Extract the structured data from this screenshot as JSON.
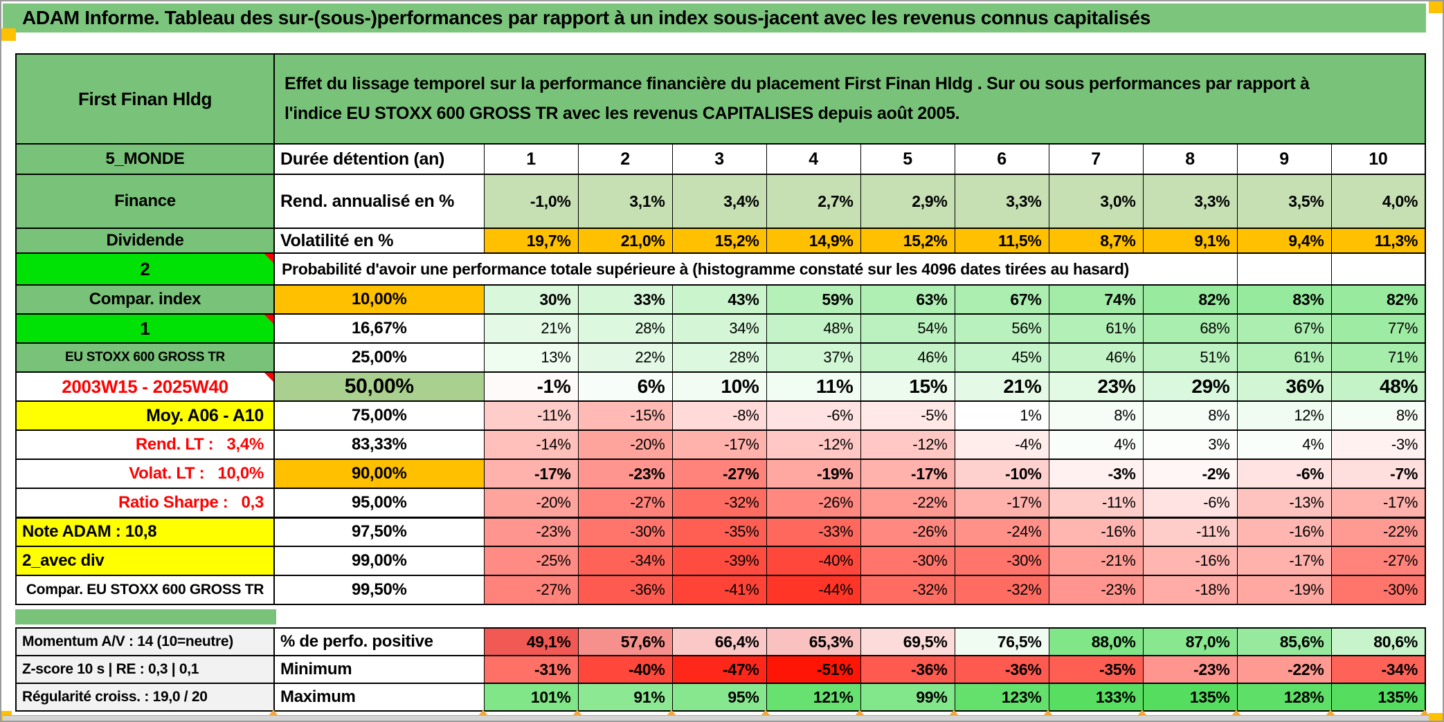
{
  "banner": {
    "title": "ADAM Informe. Tableau des sur-(sous-)performances par rapport à un index sous-jacent avec les revenus connus capitalisés"
  },
  "header": {
    "asset": "First Finan Hldg",
    "description": "Effet du lissage temporel sur la performance financière du placement First Finan Hldg . Sur ou sous performances par rapport à\nl'indice EU STOXX 600 GROSS TR avec les revenus CAPITALISES depuis août 2005."
  },
  "grid": {
    "rows": [
      {
        "kind": "duration",
        "left": "5_MONDE",
        "lv": "green",
        "mid": "Durée détention (an)",
        "mv": "label",
        "cv": "dur",
        "scale": "none",
        "cells": [
          "1",
          "2",
          "3",
          "4",
          "5",
          "6",
          "7",
          "8",
          "9",
          "10"
        ]
      },
      {
        "kind": "returns",
        "left": "Finance",
        "lv": "green",
        "mid": "Rend. annualisé en %",
        "mv": "label",
        "cv": "bold",
        "scale": "lightgreen",
        "cells": [
          "-1,0%",
          "3,1%",
          "3,4%",
          "2,7%",
          "2,9%",
          "3,3%",
          "3,0%",
          "3,3%",
          "3,5%",
          "4,0%"
        ]
      },
      {
        "kind": "volatility",
        "left": "Dividende",
        "lv": "green",
        "mid": "Volatilité en %",
        "mv": "label",
        "cv": "med",
        "scale": "orange",
        "cells": [
          "19,7%",
          "21,0%",
          "15,2%",
          "14,9%",
          "15,2%",
          "11,5%",
          "8,7%",
          "9,1%",
          "9,4%",
          "11,3%"
        ]
      },
      {
        "kind": "proba-header",
        "left": "2",
        "lv": "bright",
        "marker": true,
        "span_text": "Probabilité d'avoir une performance totale supérieure à (histogramme constaté sur les 4096 dates tirées au hasard)"
      },
      {
        "kind": "proba",
        "left": "Compar. index",
        "lv": "green",
        "mid": "10,00%",
        "mv": "orange",
        "cv": "bold",
        "scale": "heat",
        "cells": [
          "30%",
          "33%",
          "43%",
          "59%",
          "63%",
          "67%",
          "74%",
          "82%",
          "83%",
          "82%"
        ]
      },
      {
        "kind": "proba",
        "left": "1",
        "lv": "bright",
        "marker": true,
        "mid": "16,67%",
        "mv": "white",
        "cv": "norm",
        "scale": "heat",
        "cells": [
          "21%",
          "28%",
          "34%",
          "48%",
          "54%",
          "56%",
          "61%",
          "68%",
          "67%",
          "77%"
        ]
      },
      {
        "kind": "proba",
        "left": "EU STOXX 600 GROSS TR",
        "lv": "green-sm",
        "mid": "25,00%",
        "mv": "white",
        "cv": "norm",
        "scale": "heat",
        "cells": [
          "13%",
          "22%",
          "28%",
          "37%",
          "46%",
          "45%",
          "46%",
          "51%",
          "61%",
          "71%"
        ]
      },
      {
        "kind": "proba",
        "left": "2003W15 - 2025W40",
        "lv": "red-c",
        "marker": true,
        "mid": "50,00%",
        "mv": "green-big",
        "cv": "big",
        "scale": "heat",
        "cells": [
          "-1%",
          "6%",
          "10%",
          "11%",
          "15%",
          "21%",
          "23%",
          "29%",
          "36%",
          "48%"
        ]
      },
      {
        "kind": "proba",
        "left": "Moy. A06 - A10",
        "lv": "yellow-r",
        "mid": "75,00%",
        "mv": "white",
        "cv": "norm",
        "scale": "heat",
        "cells": [
          "-11%",
          "-15%",
          "-8%",
          "-6%",
          "-5%",
          "1%",
          "8%",
          "8%",
          "12%",
          "8%"
        ]
      },
      {
        "kind": "proba",
        "left": "Rend. LT :   3,4%",
        "lv": "red-r",
        "mid": "83,33%",
        "mv": "white",
        "cv": "norm",
        "scale": "heat",
        "cells": [
          "-14%",
          "-20%",
          "-17%",
          "-12%",
          "-12%",
          "-4%",
          "4%",
          "3%",
          "4%",
          "-3%"
        ]
      },
      {
        "kind": "proba",
        "left": "Volat. LT :   10,0%",
        "lv": "red-r",
        "mid": "90,00%",
        "mv": "orange",
        "cv": "bold",
        "scale": "heat",
        "cells": [
          "-17%",
          "-23%",
          "-27%",
          "-19%",
          "-17%",
          "-10%",
          "-3%",
          "-2%",
          "-6%",
          "-7%"
        ]
      },
      {
        "kind": "proba",
        "left": "Ratio Sharpe :   0,3",
        "lv": "red-r",
        "mid": "95,00%",
        "mv": "white",
        "cv": "norm",
        "scale": "heat",
        "sep": true,
        "cells": [
          "-20%",
          "-27%",
          "-32%",
          "-26%",
          "-22%",
          "-17%",
          "-11%",
          "-6%",
          "-13%",
          "-17%"
        ]
      },
      {
        "kind": "proba",
        "left": "Note ADAM : 10,8",
        "lv": "yellow-l",
        "mid": "97,50%",
        "mv": "white",
        "cv": "norm",
        "scale": "heat",
        "cells": [
          "-23%",
          "-30%",
          "-35%",
          "-33%",
          "-26%",
          "-24%",
          "-16%",
          "-11%",
          "-16%",
          "-22%"
        ]
      },
      {
        "kind": "proba",
        "left": "2_avec div",
        "lv": "yellow-l",
        "mid": "99,00%",
        "mv": "white",
        "cv": "norm",
        "scale": "heat",
        "cells": [
          "-25%",
          "-34%",
          "-39%",
          "-40%",
          "-30%",
          "-30%",
          "-21%",
          "-16%",
          "-17%",
          "-27%"
        ]
      },
      {
        "kind": "proba",
        "left": "Compar. EU STOXX 600 GROSS TR",
        "lv": "white-b",
        "mid": "99,50%",
        "mv": "white",
        "cv": "norm",
        "scale": "heat",
        "cells": [
          "-27%",
          "-36%",
          "-41%",
          "-44%",
          "-32%",
          "-32%",
          "-23%",
          "-18%",
          "-19%",
          "-30%"
        ]
      }
    ]
  },
  "summary": {
    "rows": [
      {
        "kind": "summary",
        "left": "Momentum A/V : 14 (10=neutre)",
        "lv": "gray",
        "mid": "% de perfo. positive",
        "mv": "left",
        "cv": "bold",
        "scale": "perf",
        "cells": [
          "49,1%",
          "57,6%",
          "66,4%",
          "65,3%",
          "69,5%",
          "76,5%",
          "88,0%",
          "87,0%",
          "85,6%",
          "80,6%"
        ]
      },
      {
        "kind": "summary",
        "left": "Z-score 10 s | RE : 0,3 | 0,1",
        "lv": "gray",
        "mid": "Minimum",
        "mv": "left",
        "cv": "bold",
        "scale": "heat",
        "cells": [
          "-31%",
          "-40%",
          "-47%",
          "-51%",
          "-36%",
          "-36%",
          "-35%",
          "-23%",
          "-22%",
          "-34%"
        ]
      },
      {
        "kind": "summary",
        "left": "Régularité croiss. : 19,0 / 20",
        "lv": "gray",
        "mid": "Maximum",
        "mv": "left",
        "cv": "bold",
        "scale": "heat",
        "cells": [
          "101%",
          "91%",
          "95%",
          "121%",
          "99%",
          "123%",
          "133%",
          "135%",
          "128%",
          "135%"
        ]
      }
    ]
  },
  "colors": {
    "banner_green": "#7cc57d",
    "header_green": "#79c279",
    "bright_green": "#00e106",
    "light_green": "#c6e0b4",
    "mid_green": "#a9d08e",
    "orange": "#ffc000",
    "yellow": "#ffff00",
    "gray_label": "#f2f2f2",
    "red_text": "#ff0000",
    "heat_green": "#55dd5f",
    "heat_red": "#ff1505",
    "perf_red": "#ee4640",
    "marker_orange": "#f0a83c"
  }
}
